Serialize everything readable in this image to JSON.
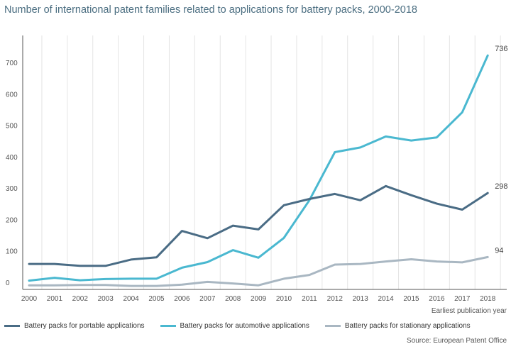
{
  "chart_data": {
    "type": "line",
    "title": "Number of international patent families related to applications for battery packs, 2000-2018",
    "xlabel": "Earliest publication year",
    "ylabel": "",
    "x": [
      "2000",
      "2001",
      "2002",
      "2003",
      "2004",
      "2005",
      "2006",
      "2007",
      "2008",
      "2009",
      "2010",
      "2011",
      "2012",
      "2013",
      "2014",
      "2015",
      "2016",
      "2017",
      "2018"
    ],
    "ylim": [
      0,
      800
    ],
    "yticks": [
      0,
      100,
      200,
      300,
      400,
      500,
      600,
      700
    ],
    "grid": "vertical",
    "legend_position": "bottom",
    "series": [
      {
        "name": "Battery packs for portable applications",
        "color": "#4a6c85",
        "values": [
          72,
          72,
          66,
          66,
          86,
          93,
          177,
          154,
          194,
          182,
          259,
          279,
          295,
          275,
          320,
          291,
          264,
          245,
          298
        ],
        "end_label": "298"
      },
      {
        "name": "Battery packs for automotive applications",
        "color": "#4ab8d0",
        "values": [
          19,
          28,
          20,
          24,
          25,
          25,
          60,
          78,
          116,
          92,
          155,
          275,
          428,
          443,
          478,
          465,
          475,
          555,
          736
        ],
        "end_label": "736"
      },
      {
        "name": "Battery packs for stationary applications",
        "color": "#a9b7c2",
        "values": [
          4,
          4,
          5,
          5,
          2,
          2,
          6,
          15,
          10,
          4,
          25,
          37,
          70,
          72,
          80,
          87,
          80,
          77,
          94
        ],
        "end_label": "94"
      }
    ]
  },
  "source": "Source: European Patent Office"
}
